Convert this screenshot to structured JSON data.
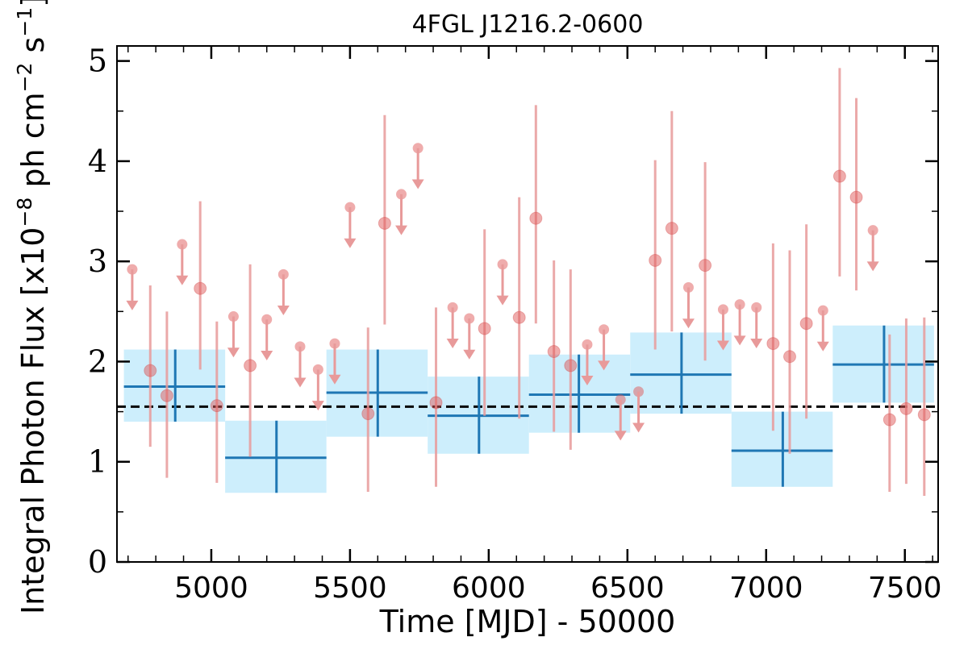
{
  "chart_data": {
    "type": "scatter",
    "title": "4FGL J1216.2-0600",
    "xlabel": "Time [MJD] - 50000",
    "ylabel": "Integral Photon Flux [x10^-8 ph cm^-2 s^-1]",
    "ylabel_parts": {
      "prefix": "Integral Photon Flux [x10",
      "exp1": "−8",
      "mid": " ph cm",
      "exp2": "−2",
      "mid2": " s",
      "exp3": "−1",
      "suffix": "]"
    },
    "xlim": [
      4660,
      7620
    ],
    "ylim": [
      0,
      5.15
    ],
    "xticks": [
      5000,
      5500,
      6000,
      6500,
      7000,
      7500
    ],
    "xtick_labels": [
      "5000",
      "5500",
      "6000",
      "6500",
      "7000",
      "7500"
    ],
    "yticks": [
      0,
      1,
      2,
      3,
      4,
      5
    ],
    "ytick_labels": [
      "0",
      "1",
      "2",
      "3",
      "4",
      "5"
    ],
    "mean_flux": 1.55,
    "colors": {
      "point": "#e05a5a",
      "errorbar": "#e89a9a",
      "bin_box": "#cdeefc",
      "bin_line": "#1f77b4",
      "mean_line": "#000000"
    },
    "series": [
      {
        "kind": "detections",
        "points": [
          {
            "x": 4780,
            "y": 1.91,
            "lo": 1.15,
            "hi": 2.76
          },
          {
            "x": 4840,
            "y": 1.66,
            "lo": 0.84,
            "hi": 2.5
          },
          {
            "x": 4960,
            "y": 2.73,
            "lo": 1.92,
            "hi": 3.6
          },
          {
            "x": 5020,
            "y": 1.56,
            "lo": 0.79,
            "hi": 2.4
          },
          {
            "x": 5140,
            "y": 1.96,
            "lo": 1.05,
            "hi": 2.97
          },
          {
            "x": 5565,
            "y": 1.48,
            "lo": 0.7,
            "hi": 2.34
          },
          {
            "x": 5625,
            "y": 3.38,
            "lo": 2.37,
            "hi": 4.46
          },
          {
            "x": 5810,
            "y": 1.59,
            "lo": 0.75,
            "hi": 2.54
          },
          {
            "x": 5985,
            "y": 2.33,
            "lo": 1.46,
            "hi": 3.32
          },
          {
            "x": 6110,
            "y": 2.44,
            "lo": 1.43,
            "hi": 3.64
          },
          {
            "x": 6170,
            "y": 3.43,
            "lo": 2.38,
            "hi": 4.56
          },
          {
            "x": 6235,
            "y": 2.1,
            "lo": 1.3,
            "hi": 3.01
          },
          {
            "x": 6295,
            "y": 1.96,
            "lo": 1.12,
            "hi": 2.92
          },
          {
            "x": 6600,
            "y": 3.01,
            "lo": 2.12,
            "hi": 4.01
          },
          {
            "x": 6660,
            "y": 3.33,
            "lo": 2.3,
            "hi": 4.5
          },
          {
            "x": 6780,
            "y": 2.96,
            "lo": 2.01,
            "hi": 3.99
          },
          {
            "x": 7025,
            "y": 2.18,
            "lo": 1.31,
            "hi": 3.18
          },
          {
            "x": 7085,
            "y": 2.05,
            "lo": 1.08,
            "hi": 3.11
          },
          {
            "x": 7145,
            "y": 2.38,
            "lo": 1.43,
            "hi": 3.37
          },
          {
            "x": 7265,
            "y": 3.85,
            "lo": 2.85,
            "hi": 4.93
          },
          {
            "x": 7325,
            "y": 3.64,
            "lo": 2.71,
            "hi": 4.63
          },
          {
            "x": 7445,
            "y": 1.42,
            "lo": 0.7,
            "hi": 2.27
          },
          {
            "x": 7505,
            "y": 1.53,
            "lo": 0.78,
            "hi": 2.43
          },
          {
            "x": 7570,
            "y": 1.47,
            "lo": 0.66,
            "hi": 2.44
          }
        ]
      },
      {
        "kind": "upper_limits",
        "points": [
          {
            "x": 4715,
            "y": 2.92
          },
          {
            "x": 4895,
            "y": 3.17
          },
          {
            "x": 5080,
            "y": 2.45
          },
          {
            "x": 5200,
            "y": 2.42
          },
          {
            "x": 5260,
            "y": 2.87
          },
          {
            "x": 5320,
            "y": 2.15
          },
          {
            "x": 5385,
            "y": 1.92
          },
          {
            "x": 5445,
            "y": 2.18
          },
          {
            "x": 5500,
            "y": 3.54
          },
          {
            "x": 5685,
            "y": 3.67
          },
          {
            "x": 5745,
            "y": 4.13
          },
          {
            "x": 5870,
            "y": 2.54
          },
          {
            "x": 5930,
            "y": 2.43
          },
          {
            "x": 6050,
            "y": 2.97
          },
          {
            "x": 6355,
            "y": 2.17
          },
          {
            "x": 6415,
            "y": 2.32
          },
          {
            "x": 6475,
            "y": 1.62
          },
          {
            "x": 6540,
            "y": 1.7
          },
          {
            "x": 6720,
            "y": 2.74
          },
          {
            "x": 6845,
            "y": 2.52
          },
          {
            "x": 6905,
            "y": 2.57
          },
          {
            "x": 6965,
            "y": 2.54
          },
          {
            "x": 7205,
            "y": 2.51
          },
          {
            "x": 7385,
            "y": 3.31
          }
        ]
      },
      {
        "kind": "bins",
        "points": [
          {
            "x0": 4685,
            "x1": 5050,
            "xc": 4870,
            "y": 1.75,
            "lo": 1.4,
            "hi": 2.12
          },
          {
            "x0": 5050,
            "x1": 5415,
            "xc": 5235,
            "y": 1.04,
            "lo": 0.69,
            "hi": 1.41
          },
          {
            "x0": 5415,
            "x1": 5780,
            "xc": 5600,
            "y": 1.69,
            "lo": 1.25,
            "hi": 2.12
          },
          {
            "x0": 5780,
            "x1": 6145,
            "xc": 5965,
            "y": 1.46,
            "lo": 1.08,
            "hi": 1.85
          },
          {
            "x0": 6145,
            "x1": 6510,
            "xc": 6325,
            "y": 1.67,
            "lo": 1.29,
            "hi": 2.07
          },
          {
            "x0": 6510,
            "x1": 6875,
            "xc": 6695,
            "y": 1.87,
            "lo": 1.48,
            "hi": 2.29
          },
          {
            "x0": 6875,
            "x1": 7240,
            "xc": 7060,
            "y": 1.11,
            "lo": 0.75,
            "hi": 1.5
          },
          {
            "x0": 7240,
            "x1": 7605,
            "xc": 7425,
            "y": 1.97,
            "lo": 1.59,
            "hi": 2.36
          }
        ]
      }
    ]
  }
}
